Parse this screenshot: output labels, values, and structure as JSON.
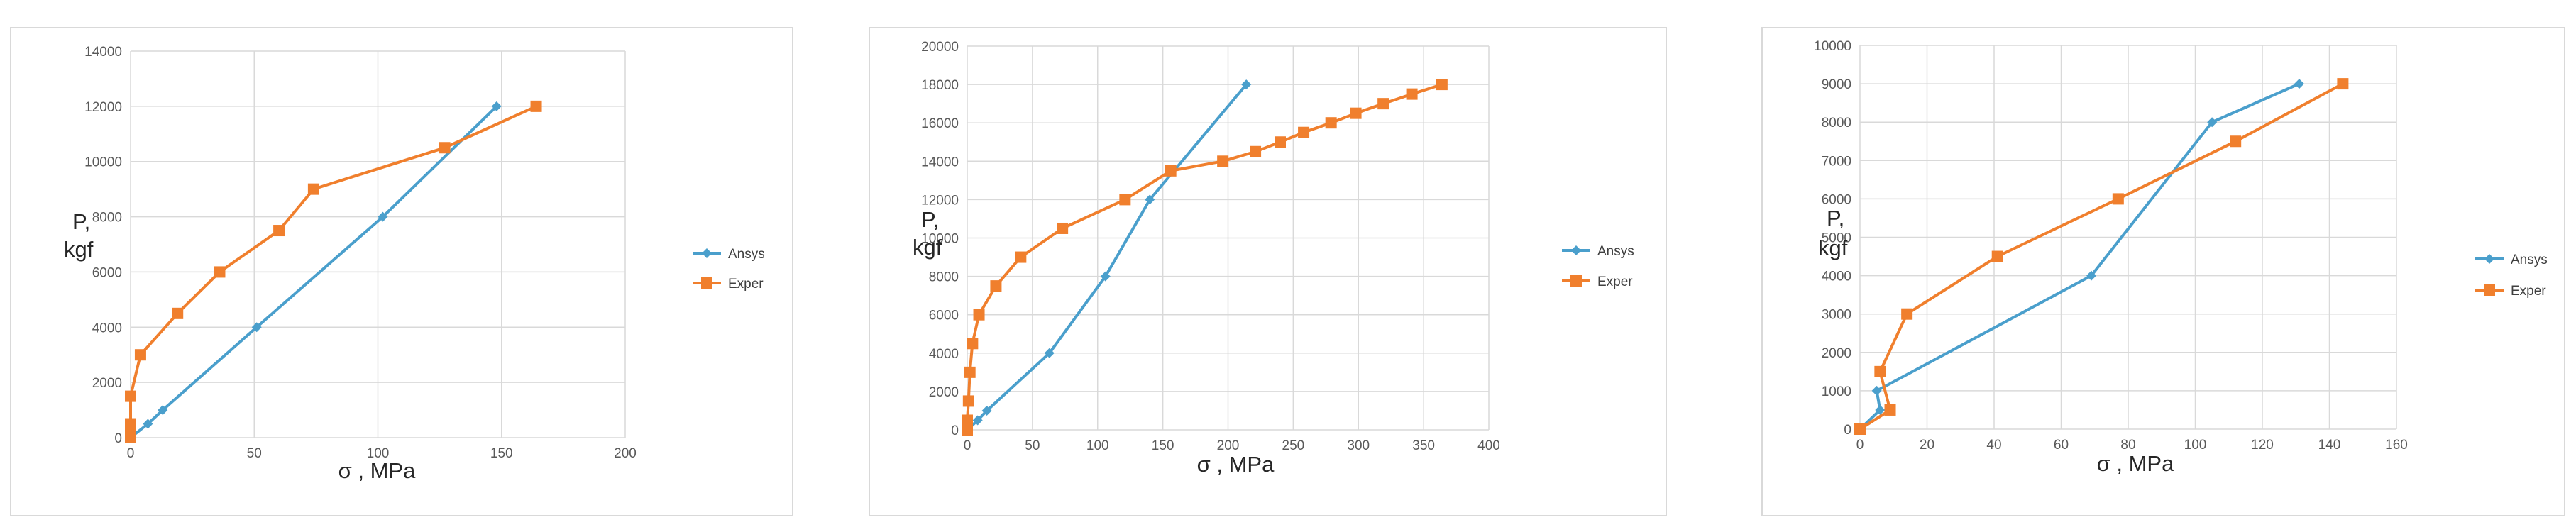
{
  "chart_data": [
    {
      "type": "scatter",
      "title": "",
      "xlabel": "σ , MPa",
      "ylabel_line1": "P,",
      "ylabel_line2": "kgf",
      "xlim": [
        0,
        200
      ],
      "ylim": [
        0,
        14000
      ],
      "xticks": [
        0,
        50,
        100,
        150,
        200
      ],
      "yticks": [
        0,
        2000,
        4000,
        6000,
        8000,
        10000,
        12000,
        14000
      ],
      "grid": true,
      "legend_position": "right",
      "series": [
        {
          "name": "Ansys",
          "color": "#4a9fcc",
          "marker": "diamond",
          "x": [
            0,
            7,
            13,
            51,
            102,
            148
          ],
          "y": [
            0,
            500,
            1000,
            4000,
            8000,
            12000
          ]
        },
        {
          "name": "Exper",
          "color": "#f07f2d",
          "marker": "square",
          "x": [
            0,
            0,
            0,
            0,
            4,
            19,
            36,
            60,
            74,
            127,
            164
          ],
          "y": [
            0,
            200,
            500,
            1500,
            3000,
            4500,
            6000,
            7500,
            9000,
            10500,
            12000
          ]
        }
      ]
    },
    {
      "type": "scatter",
      "title": "",
      "xlabel": "σ , MPa",
      "ylabel_line1": "P,",
      "ylabel_line2": "kgf",
      "xlim": [
        0,
        400
      ],
      "ylim": [
        0,
        20000
      ],
      "xticks": [
        0,
        50,
        100,
        150,
        200,
        250,
        300,
        350,
        400
      ],
      "yticks": [
        0,
        2000,
        4000,
        6000,
        8000,
        10000,
        12000,
        14000,
        16000,
        18000,
        20000
      ],
      "grid": true,
      "legend_position": "right",
      "series": [
        {
          "name": "Ansys",
          "color": "#4a9fcc",
          "marker": "diamond",
          "x": [
            0,
            8,
            15,
            63,
            106,
            140,
            214
          ],
          "y": [
            0,
            500,
            1000,
            4000,
            8000,
            12000,
            18000
          ]
        },
        {
          "name": "Exper",
          "color": "#f07f2d",
          "marker": "square",
          "x": [
            0,
            0,
            0,
            1,
            2,
            4,
            9,
            22,
            41,
            73,
            121,
            156,
            196,
            221,
            240,
            258,
            279,
            298,
            319,
            341,
            364
          ],
          "y": [
            0,
            200,
            500,
            1500,
            3000,
            4500,
            6000,
            7500,
            9000,
            10500,
            12000,
            13500,
            14000,
            14500,
            15000,
            15500,
            16000,
            16500,
            17000,
            17500,
            18000
          ]
        }
      ]
    },
    {
      "type": "scatter",
      "title": "",
      "xlabel": "σ , MPa",
      "ylabel_line1": "P,",
      "ylabel_line2": "kgf",
      "xlim": [
        0,
        160
      ],
      "ylim": [
        0,
        10000
      ],
      "xticks": [
        0,
        20,
        40,
        60,
        80,
        100,
        120,
        140,
        160
      ],
      "yticks": [
        0,
        1000,
        2000,
        3000,
        4000,
        5000,
        6000,
        7000,
        8000,
        9000,
        10000
      ],
      "grid": true,
      "legend_position": "right",
      "series": [
        {
          "name": "Ansys",
          "color": "#4a9fcc",
          "marker": "diamond",
          "x": [
            0,
            6,
            5,
            69,
            105,
            131
          ],
          "y": [
            0,
            500,
            1000,
            4000,
            8000,
            9000
          ]
        },
        {
          "name": "Exper",
          "color": "#f07f2d",
          "marker": "square",
          "x": [
            0,
            9,
            6,
            14,
            41,
            77,
            112,
            144
          ],
          "y": [
            0,
            500,
            1500,
            3000,
            4500,
            6000,
            7500,
            9000
          ]
        }
      ]
    }
  ]
}
